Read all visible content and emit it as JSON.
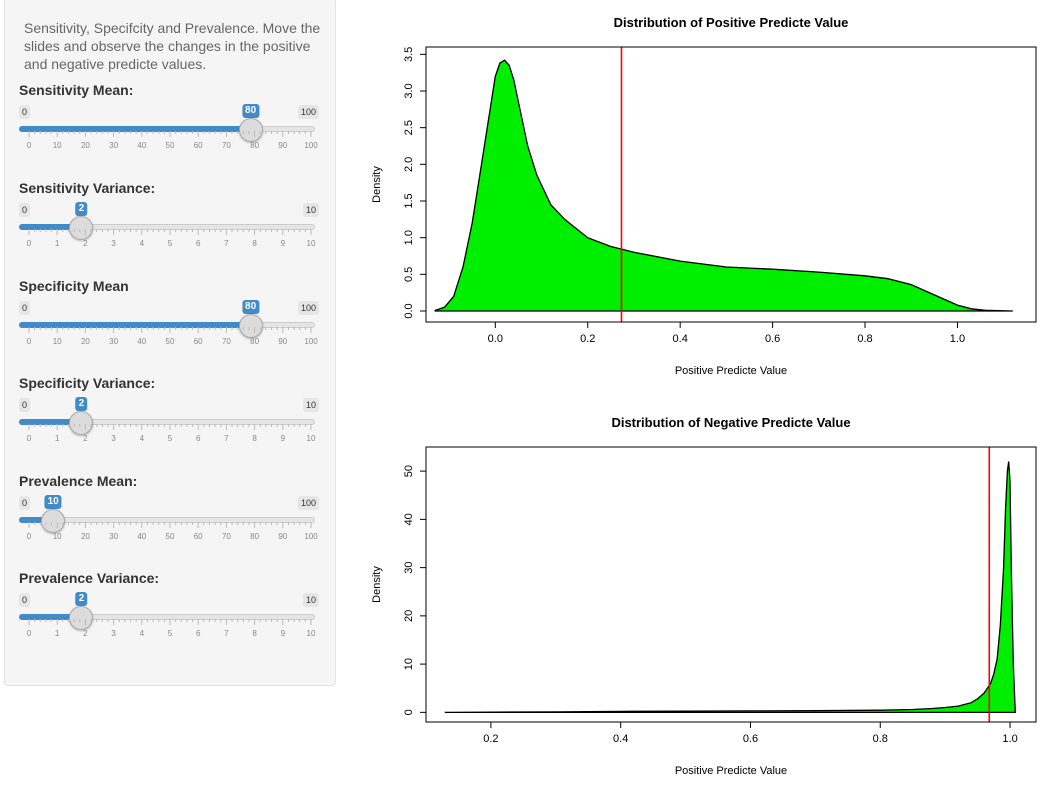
{
  "sidebar": {
    "intro_text": "Sensitivity, Specifcity and Prevalence. Move the slides and observe the changes in the positive and negative predicte values.",
    "sliders": [
      {
        "label": "Sensitivity Mean:",
        "min": 0,
        "max": 100,
        "value": 80,
        "ticks": [
          "0",
          "10",
          "20",
          "30",
          "40",
          "50",
          "60",
          "70",
          "80",
          "90",
          "100"
        ]
      },
      {
        "label": "Sensitivity Variance:",
        "min": 0,
        "max": 10,
        "value": 2,
        "ticks": [
          "0",
          "1",
          "2",
          "3",
          "4",
          "5",
          "6",
          "7",
          "8",
          "9",
          "10"
        ]
      },
      {
        "label": "Specificity Mean",
        "min": 0,
        "max": 100,
        "value": 80,
        "ticks": [
          "0",
          "10",
          "20",
          "30",
          "40",
          "50",
          "60",
          "70",
          "80",
          "90",
          "100"
        ]
      },
      {
        "label": "Specificity Variance:",
        "min": 0,
        "max": 10,
        "value": 2,
        "ticks": [
          "0",
          "1",
          "2",
          "3",
          "4",
          "5",
          "6",
          "7",
          "8",
          "9",
          "10"
        ]
      },
      {
        "label": "Prevalence Mean:",
        "min": 0,
        "max": 100,
        "value": 10,
        "ticks": [
          "0",
          "10",
          "20",
          "30",
          "40",
          "50",
          "60",
          "70",
          "80",
          "90",
          "100"
        ]
      },
      {
        "label": "Prevalence Variance:",
        "min": 0,
        "max": 10,
        "value": 2,
        "ticks": [
          "0",
          "1",
          "2",
          "3",
          "4",
          "5",
          "6",
          "7",
          "8",
          "9",
          "10"
        ]
      }
    ]
  },
  "colors": {
    "accent": "#428bca",
    "fill": "#00ee00",
    "marker_line": "#ff0000"
  },
  "chart_data": [
    {
      "type": "area",
      "title": "Distribution of Positive Predicte Value",
      "xlabel": "Positive Predicte Value",
      "ylabel": "Density",
      "xlim": [
        -0.15,
        1.17
      ],
      "ylim": [
        -0.15,
        3.6
      ],
      "xticks": [
        0.0,
        0.2,
        0.4,
        0.6,
        0.8,
        1.0
      ],
      "xtick_labels": [
        "0.0",
        "0.2",
        "0.4",
        "0.6",
        "0.8",
        "1.0"
      ],
      "yticks": [
        0.0,
        0.5,
        1.0,
        1.5,
        2.0,
        2.5,
        3.0,
        3.5
      ],
      "ytick_labels": [
        "0.0",
        "0.5",
        "1.0",
        "1.5",
        "2.0",
        "2.5",
        "3.0",
        "3.5"
      ],
      "vline": 0.273,
      "x": [
        -0.13,
        -0.11,
        -0.09,
        -0.07,
        -0.05,
        -0.03,
        -0.01,
        0.0,
        0.01,
        0.02,
        0.03,
        0.04,
        0.05,
        0.07,
        0.09,
        0.12,
        0.15,
        0.2,
        0.25,
        0.3,
        0.4,
        0.5,
        0.6,
        0.7,
        0.8,
        0.85,
        0.9,
        0.95,
        1.0,
        1.03,
        1.06,
        1.12
      ],
      "y": [
        0.01,
        0.05,
        0.2,
        0.6,
        1.2,
        2.0,
        2.8,
        3.2,
        3.38,
        3.42,
        3.35,
        3.15,
        2.85,
        2.25,
        1.85,
        1.45,
        1.25,
        1.0,
        0.88,
        0.8,
        0.68,
        0.6,
        0.57,
        0.53,
        0.48,
        0.44,
        0.36,
        0.22,
        0.08,
        0.03,
        0.01,
        0.0
      ]
    },
    {
      "type": "area",
      "title": "Distribution of Negative Predicte Value",
      "xlabel": "Positive Predicte Value",
      "ylabel": "Density",
      "xlim": [
        0.1,
        1.04
      ],
      "ylim": [
        -2,
        55
      ],
      "xticks": [
        0.2,
        0.4,
        0.6,
        0.8,
        1.0
      ],
      "xtick_labels": [
        "0.2",
        "0.4",
        "0.6",
        "0.8",
        "1.0"
      ],
      "yticks": [
        0,
        10,
        20,
        30,
        40,
        50
      ],
      "ytick_labels": [
        "0",
        "10",
        "20",
        "30",
        "40",
        "50"
      ],
      "vline": 0.968,
      "x": [
        0.13,
        0.2,
        0.3,
        0.4,
        0.5,
        0.6,
        0.7,
        0.8,
        0.85,
        0.88,
        0.9,
        0.92,
        0.94,
        0.95,
        0.96,
        0.97,
        0.975,
        0.98,
        0.985,
        0.99,
        0.993,
        0.996,
        0.998,
        1.0,
        1.002,
        1.005,
        1.008
      ],
      "y": [
        0.0,
        0.05,
        0.1,
        0.2,
        0.25,
        0.3,
        0.35,
        0.45,
        0.6,
        0.8,
        1.0,
        1.3,
        2.0,
        2.8,
        4.0,
        6.0,
        8.0,
        11.0,
        18.0,
        30.0,
        42.0,
        50.0,
        52.0,
        48.0,
        30.0,
        10.0,
        0.5
      ]
    }
  ]
}
